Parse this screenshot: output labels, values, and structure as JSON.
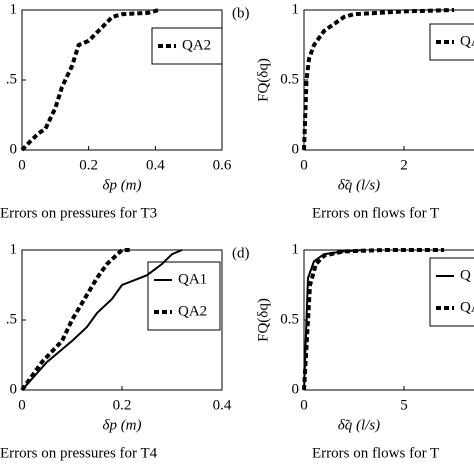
{
  "chart_data": [
    {
      "type": "line",
      "x_label": "δp (m)",
      "caption": "Errors on pressures for T3",
      "xlim": [
        0,
        0.6
      ],
      "xticks": [
        0,
        0.2,
        0.4,
        0.6
      ],
      "ylim": [
        0,
        1
      ],
      "yticks": [
        0,
        {
          "value": 0.5,
          "label": ".5"
        },
        1
      ],
      "series": [
        {
          "name": "QA2",
          "color": "#000000",
          "dashed": true,
          "x": [
            0,
            0.02,
            0.05,
            0.07,
            0.1,
            0.12,
            0.15,
            0.17,
            0.2,
            0.25,
            0.27,
            0.3,
            0.38,
            0.41
          ],
          "values": [
            0,
            0.05,
            0.12,
            0.15,
            0.3,
            0.45,
            0.6,
            0.75,
            0.78,
            0.9,
            0.95,
            0.97,
            0.98,
            1
          ]
        }
      ]
    },
    {
      "type": "line",
      "panel_label": "(b)",
      "x_label": "δ̃q (l/s)",
      "y_label": "FQ(δq)",
      "caption": "Errors on flows for T",
      "xlim": [
        0,
        4
      ],
      "xticks": [
        0,
        2
      ],
      "ylim": [
        0,
        1
      ],
      "yticks": [
        0,
        0.5,
        1
      ],
      "series": [
        {
          "name": "QA",
          "color": "#000000",
          "dashed": true,
          "x": [
            0,
            0.05,
            0.1,
            0.2,
            0.4,
            0.8,
            1,
            2,
            3
          ],
          "values": [
            0,
            0.5,
            0.65,
            0.75,
            0.85,
            0.95,
            0.97,
            0.99,
            1
          ]
        }
      ]
    },
    {
      "type": "line",
      "x_label": "δp (m)",
      "caption": "Errors on pressures for T4",
      "xlim": [
        0,
        0.4
      ],
      "xticks": [
        0,
        0.2,
        0.4
      ],
      "ylim": [
        0,
        1
      ],
      "yticks": [
        0,
        {
          "value": 0.5,
          "label": ".5"
        },
        1
      ],
      "series": [
        {
          "name": "QA1",
          "color": "#000000",
          "dashed": false,
          "x": [
            0,
            0.05,
            0.1,
            0.13,
            0.15,
            0.18,
            0.2,
            0.25,
            0.28,
            0.3,
            0.32
          ],
          "values": [
            0,
            0.2,
            0.35,
            0.45,
            0.55,
            0.65,
            0.75,
            0.82,
            0.9,
            0.97,
            1
          ]
        },
        {
          "name": "QA2",
          "color": "#000000",
          "dashed": true,
          "x": [
            0,
            0.04,
            0.08,
            0.1,
            0.12,
            0.15,
            0.17,
            0.2,
            0.22
          ],
          "values": [
            0,
            0.2,
            0.35,
            0.5,
            0.62,
            0.8,
            0.9,
            1,
            1
          ]
        }
      ]
    },
    {
      "type": "line",
      "panel_label": "(d)",
      "x_label": "δ̃q (l/s)",
      "y_label": "FQ(δq)",
      "caption": "Errors on flows for T",
      "xlim": [
        0,
        10
      ],
      "xticks": [
        0,
        5
      ],
      "ylim": [
        0,
        1
      ],
      "yticks": [
        0,
        0.5,
        1
      ],
      "series": [
        {
          "name": "Q",
          "color": "#000000",
          "dashed": false,
          "x": [
            0,
            0.2,
            0.5,
            1,
            2,
            3
          ],
          "values": [
            0,
            0.8,
            0.92,
            0.97,
            0.99,
            1
          ]
        },
        {
          "name": "QA",
          "color": "#000000",
          "dashed": true,
          "x": [
            0,
            0.3,
            0.6,
            1,
            2,
            4,
            7
          ],
          "values": [
            0,
            0.75,
            0.9,
            0.96,
            0.99,
            1,
            1
          ]
        }
      ]
    }
  ]
}
